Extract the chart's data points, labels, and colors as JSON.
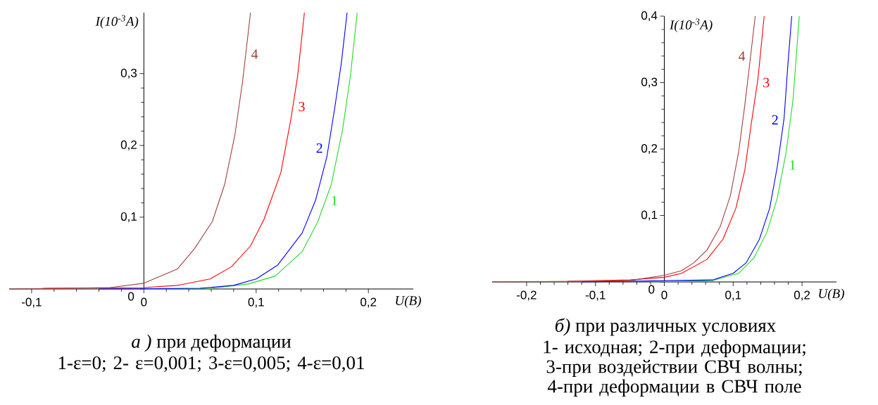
{
  "chart_data": [
    {
      "type": "line",
      "title": "*а )* при деформации",
      "subtitle": "1-ε=0; 2- ε=0,001; 3-ε=0,005; 4-ε=0,01",
      "xlabel": "U(B)",
      "ylabel": "I(10$^{-3}$A)",
      "xlim": [
        -0.12,
        0.24
      ],
      "ylim": [
        0,
        0.385
      ],
      "xticks": [
        {
          "value": -0.1,
          "label": "-0,1"
        },
        0,
        {
          "value": 0.1,
          "label": "0,1"
        },
        {
          "value": 0.2,
          "label": "0,2"
        }
      ],
      "yticks": [
        0,
        {
          "value": 0.1,
          "label": "0,1"
        },
        {
          "value": 0.2,
          "label": "0,2"
        },
        {
          "value": 0.3,
          "label": "0,3"
        }
      ],
      "series": [
        {
          "name": "1",
          "color": "#22dd22",
          "x": [
            -0.01,
            0.06,
            0.093,
            0.117,
            0.141,
            0.155,
            0.167,
            0.177,
            0.184,
            0.19
          ],
          "values": [
            0,
            0.001,
            0.007,
            0.018,
            0.052,
            0.094,
            0.146,
            0.222,
            0.297,
            0.385
          ]
        },
        {
          "name": "2",
          "color": "#0000ff",
          "x": [
            -0.04,
            0.05,
            0.08,
            0.1,
            0.119,
            0.141,
            0.153,
            0.163,
            0.17,
            0.176,
            0.181
          ],
          "values": [
            0,
            0.001,
            0.005,
            0.014,
            0.033,
            0.078,
            0.124,
            0.184,
            0.252,
            0.316,
            0.385
          ]
        },
        {
          "name": "3",
          "color": "#ff0000",
          "x": [
            -0.09,
            0,
            0.03,
            0.059,
            0.078,
            0.095,
            0.107,
            0.122,
            0.131,
            0.137,
            0.143
          ],
          "values": [
            0.001,
            0.002,
            0.005,
            0.014,
            0.031,
            0.06,
            0.097,
            0.162,
            0.237,
            0.297,
            0.385
          ]
        },
        {
          "name": "4",
          "color": "#a04040",
          "x": [
            -0.12,
            -0.03,
            0,
            0.03,
            0.045,
            0.061,
            0.072,
            0.081,
            0.088,
            0.095
          ],
          "values": [
            0,
            0.002,
            0.008,
            0.028,
            0.056,
            0.094,
            0.146,
            0.214,
            0.29,
            0.385
          ]
        }
      ]
    },
    {
      "type": "line",
      "title": "*б)* при различных условиях",
      "subtitle": "1- исходная; 2-при деформации; 3-при воздействии СВЧ волны; 4-при деформации в СВЧ поле",
      "xlabel": "U(B)",
      "ylabel": "I(10$^{-3}$A)",
      "xlim": [
        -0.25,
        0.25
      ],
      "ylim": [
        0,
        0.4
      ],
      "xticks": [
        {
          "value": -0.2,
          "label": "-0,2"
        },
        {
          "value": -0.1,
          "label": "-0,1"
        },
        0,
        {
          "value": 0.1,
          "label": "0,1"
        },
        {
          "value": 0.2,
          "label": "0,2"
        }
      ],
      "yticks": [
        0,
        {
          "value": 0.1,
          "label": "0,1"
        },
        {
          "value": 0.2,
          "label": "0,2"
        },
        {
          "value": 0.3,
          "label": "0,3"
        },
        {
          "value": 0.4,
          "label": "0,4"
        }
      ],
      "series": [
        {
          "name": "1",
          "color": "#22dd22",
          "x": [
            -0.02,
            0.07,
            0.108,
            0.13,
            0.149,
            0.164,
            0.177,
            0.187,
            0.196
          ],
          "values": [
            0,
            0.002,
            0.013,
            0.036,
            0.075,
            0.126,
            0.196,
            0.275,
            0.4
          ]
        },
        {
          "name": "2",
          "color": "#0000ff",
          "x": [
            -0.12,
            0.07,
            0.1,
            0.119,
            0.138,
            0.153,
            0.164,
            0.174,
            0.179,
            0.185
          ],
          "values": [
            0,
            0.003,
            0.013,
            0.029,
            0.064,
            0.111,
            0.173,
            0.247,
            0.321,
            0.4
          ]
        },
        {
          "name": "3",
          "color": "#ff0000",
          "x": [
            -0.14,
            -0.05,
            0,
            0.025,
            0.062,
            0.085,
            0.104,
            0.117,
            0.126,
            0.136,
            0.145
          ],
          "values": [
            0.001,
            0.003,
            0.007,
            0.013,
            0.034,
            0.064,
            0.111,
            0.169,
            0.236,
            0.306,
            0.4
          ]
        },
        {
          "name": "4",
          "color": "#a04040",
          "x": [
            -0.25,
            -0.13,
            -0.05,
            0,
            0.025,
            0.043,
            0.062,
            0.081,
            0.096,
            0.108,
            0.117,
            0.125,
            0.132
          ],
          "values": [
            0,
            0.001,
            0.002,
            0.01,
            0.017,
            0.029,
            0.048,
            0.083,
            0.13,
            0.196,
            0.267,
            0.337,
            0.4
          ]
        }
      ]
    }
  ]
}
